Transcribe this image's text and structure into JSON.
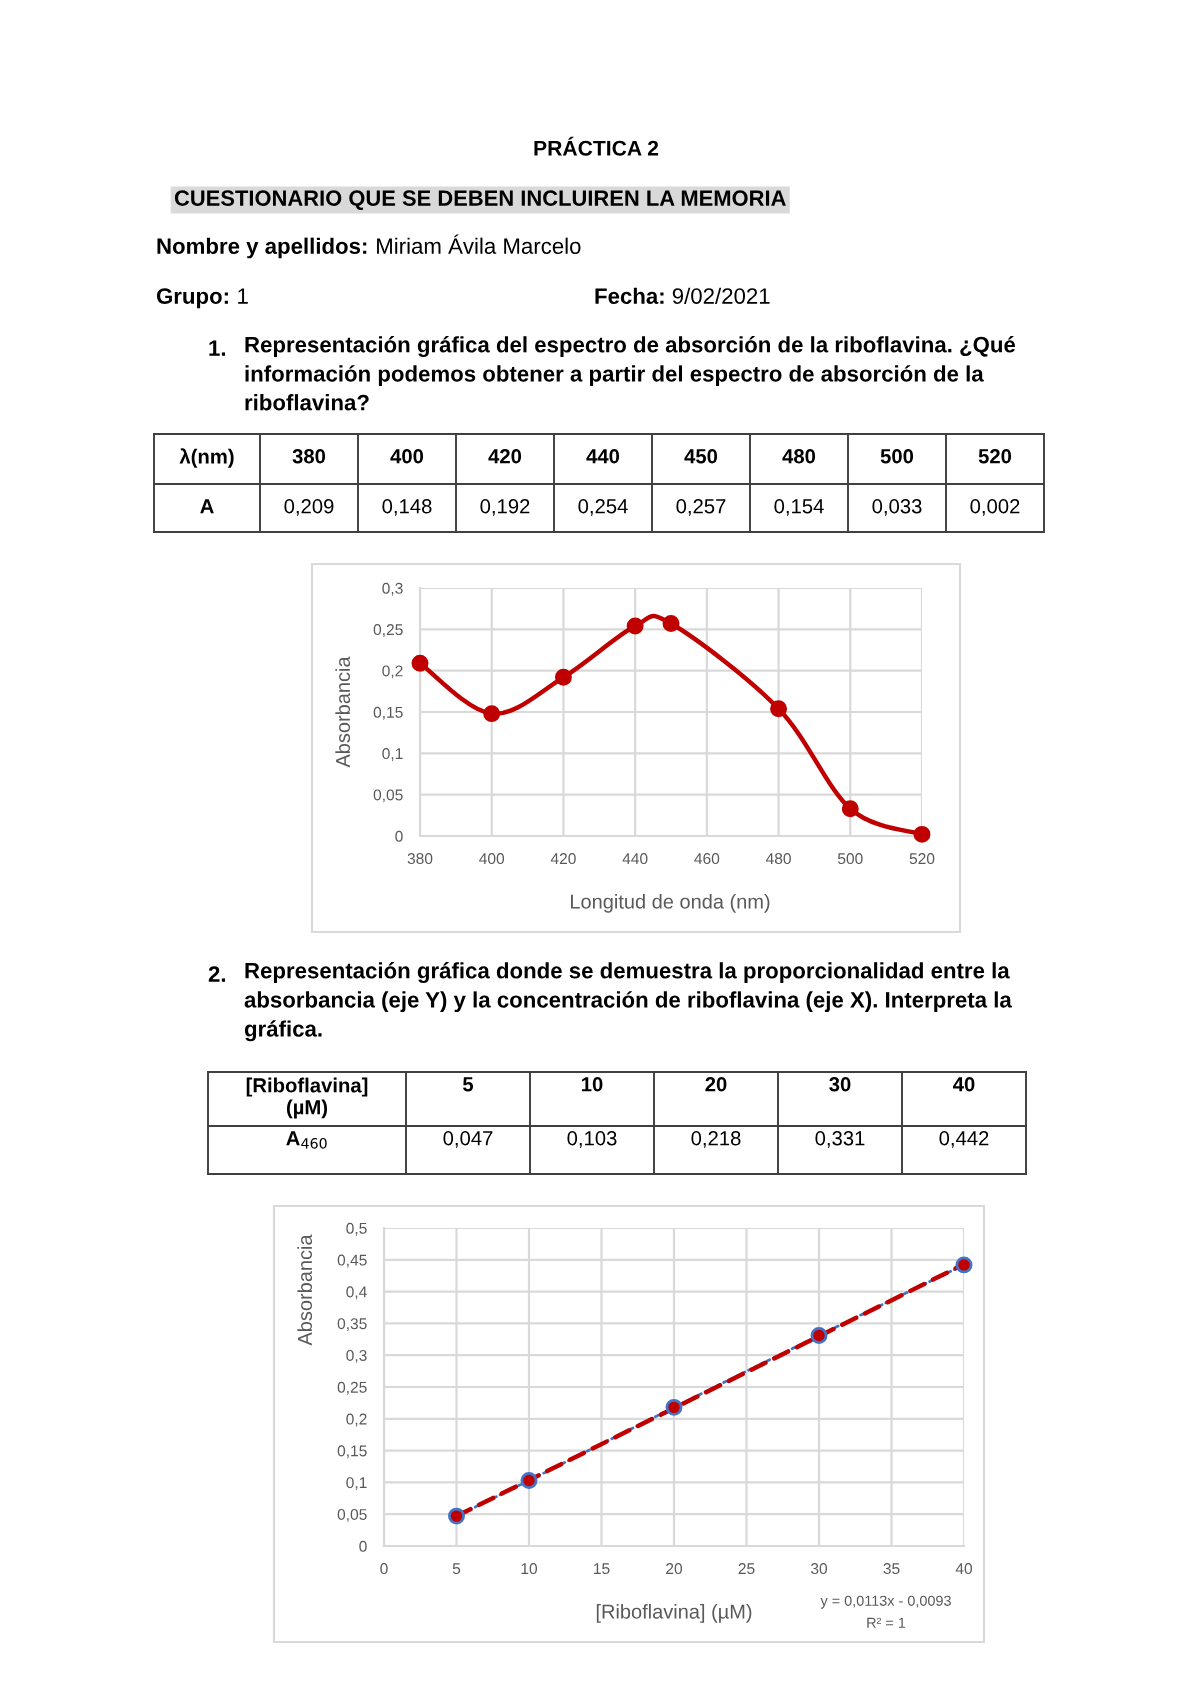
{
  "chart_data": [
    {
      "type": "line",
      "title": "PRÁCTICA 2",
      "subtitle": "CUESTIONARIO QUE SE DEBEN INCLUIREN LA MEMORIA",
      "xlabel": "Longitud de onda (nm)",
      "ylabel": "Absorbancia",
      "x": [
        380,
        400,
        420,
        440,
        450,
        480,
        500,
        520
      ],
      "series": [
        {
          "color": "#c00000",
          "values": [
            0.209,
            0.148,
            0.192,
            0.254,
            0.257,
            0.154,
            0.033,
            0.002
          ]
        }
      ],
      "xlim": [
        380,
        520
      ],
      "xticks": [
        380,
        400,
        420,
        440,
        460,
        480,
        500,
        520
      ],
      "ylim": [
        0,
        0.3
      ],
      "yticks": [
        0,
        {
          "value": 0.05,
          "label": "0,05"
        },
        {
          "value": 0.1,
          "label": "0,1"
        },
        {
          "value": 0.15,
          "label": "0,15"
        },
        {
          "value": 0.2,
          "label": "0,2"
        },
        {
          "value": 0.25,
          "label": "0,25"
        },
        {
          "value": 0.3,
          "label": "0,3"
        }
      ],
      "grid": true,
      "marker": "circle",
      "line_style": "solid",
      "annotations": [
        "Nombre y apellidos:",
        "Miriam Ávila Marcelo",
        "Grupo:",
        "1",
        "Fecha:",
        "9/02/2021",
        "1.",
        "Representación gráfica del espectro de absorción de la riboflavina. ¿Qué información podemos obtener a partir del espectro de absorción de la riboflavina?",
        "λ(nm)",
        "380",
        "400",
        "420",
        "440",
        "450",
        "480",
        "500",
        "520",
        "A",
        "0,209",
        "0,148",
        "0,192",
        "0,254",
        "0,257",
        "0,154",
        "0,033",
        "0,002"
      ]
    },
    {
      "type": "line",
      "xlabel": "[Riboflavina] (µM)",
      "ylabel": "Absorbancia",
      "series": [
        {
          "color": "#4472c4",
          "colors": [
            "#c00000",
            "#c00000",
            "#c00000",
            "#c00000",
            "#c00000"
          ],
          "x": [
            5,
            10,
            20,
            30,
            40
          ],
          "values": [
            0.047,
            0.103,
            0.218,
            0.331,
            0.442
          ],
          "line_style": "dotted",
          "marker": "circle"
        },
        {
          "type": "line",
          "color": "#c00000",
          "x": [
            5,
            40
          ],
          "values": [
            0.047,
            0.443
          ],
          "line_style": "dashed",
          "marker": "none"
        }
      ],
      "xlim": [
        0,
        40
      ],
      "xticks": [
        0,
        5,
        10,
        15,
        20,
        25,
        30,
        35,
        40
      ],
      "ylim": [
        0,
        0.5
      ],
      "yticks": [
        0,
        {
          "value": 0.05,
          "label": "0,05"
        },
        {
          "value": 0.1,
          "label": "0,1"
        },
        {
          "value": 0.15,
          "label": "0,15"
        },
        {
          "value": 0.2,
          "label": "0,2"
        },
        {
          "value": 0.25,
          "label": "0,25"
        },
        {
          "value": 0.3,
          "label": "0,3"
        },
        {
          "value": 0.35,
          "label": "0,35"
        },
        {
          "value": 0.4,
          "label": "0,4"
        },
        {
          "value": 0.45,
          "label": "0,45"
        },
        {
          "value": 0.5,
          "label": "0,5"
        }
      ],
      "grid": true,
      "annotations": [
        "2.",
        "Representación gráfica donde se demuestra la proporcionalidad entre la absorbancia (eje Y) y la concentración de riboflavina (eje X). Interpreta la gráfica.",
        "[Riboflavina] (µM)",
        "5",
        "10",
        "20",
        "30",
        "40",
        "A$_{460}$",
        "0,047",
        "0,103",
        "0,218",
        "0,331",
        "0,442",
        "y = 0,0113x - 0,0093",
        "R² = 1"
      ]
    }
  ]
}
